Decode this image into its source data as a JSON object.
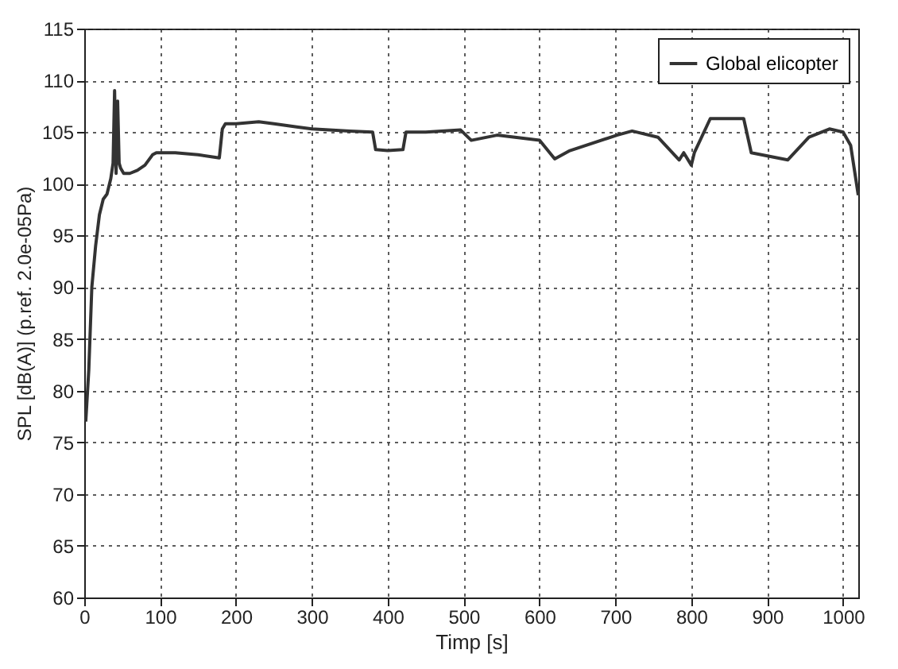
{
  "chart_data": {
    "type": "line",
    "xlabel": "Timp [s]",
    "ylabel": "SPL [dB(A)] (p.ref. 2.0e-05Pa)",
    "xlim": [
      0,
      1020
    ],
    "ylim": [
      60,
      115
    ],
    "xticks": [
      0,
      100,
      200,
      300,
      400,
      500,
      600,
      700,
      800,
      900,
      1000
    ],
    "yticks": [
      60,
      65,
      70,
      75,
      80,
      85,
      90,
      95,
      100,
      105,
      110,
      115
    ],
    "grid": true,
    "legend": "top right",
    "x": [
      2,
      6,
      10,
      15,
      20,
      25,
      30,
      35,
      38,
      40,
      42,
      44,
      46,
      48,
      52,
      60,
      70,
      80,
      90,
      95,
      120,
      150,
      178,
      182,
      186,
      200,
      230,
      250,
      280,
      300,
      350,
      380,
      384,
      400,
      420,
      424,
      450,
      496,
      510,
      544,
      600,
      620,
      640,
      702,
      722,
      756,
      784,
      790,
      800,
      804,
      825,
      869,
      879,
      927,
      955,
      982,
      1000,
      1010,
      1020
    ],
    "series": [
      {
        "name": "Global elicopter",
        "color": "#333333",
        "values": [
          77,
          82,
          90,
          94,
          97,
          98.5,
          99,
          100.5,
          102,
          109,
          101,
          108,
          102,
          101.5,
          101,
          101,
          101.3,
          101.8,
          102.8,
          103,
          103,
          102.8,
          102.5,
          105.3,
          105.8,
          105.8,
          106,
          105.8,
          105.5,
          105.3,
          105.1,
          105,
          103.3,
          103.2,
          103.3,
          105,
          105,
          105.2,
          104.2,
          104.7,
          104.2,
          102.4,
          103.2,
          104.7,
          105.1,
          104.5,
          102.3,
          103,
          101.8,
          103,
          106.3,
          106.3,
          103,
          102.3,
          104.5,
          105.3,
          105,
          103.7,
          98.9
        ]
      }
    ]
  }
}
